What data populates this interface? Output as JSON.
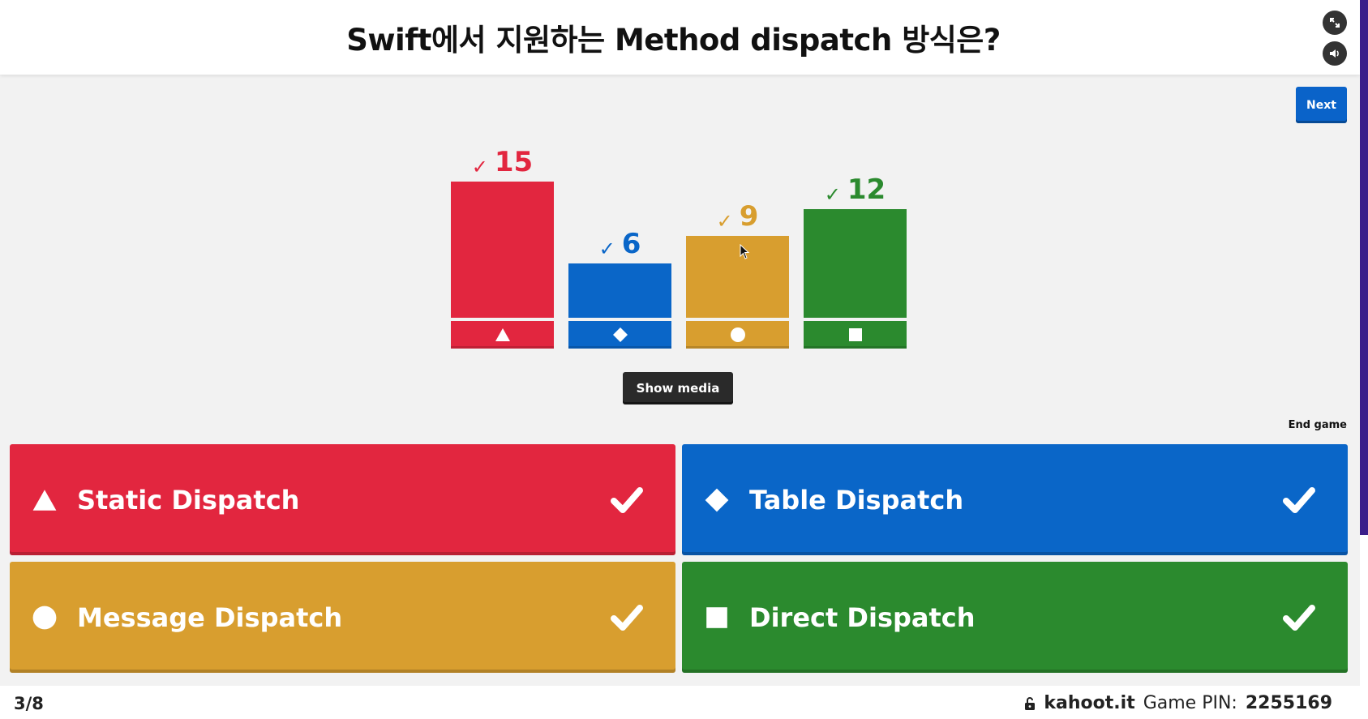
{
  "question": "Swift에서 지원하는 Method dispatch 방식은?",
  "controls": {
    "fullscreen_icon": "expand-icon",
    "sound_icon": "speaker-icon",
    "next_label": "Next",
    "show_media_label": "Show media",
    "end_game_label": "End game"
  },
  "colors": {
    "red": "#e2263f",
    "blue": "#0a66c8",
    "yellow": "#d89e2f",
    "green": "#2b8a2e"
  },
  "chart_data": {
    "type": "bar",
    "categories": [
      "triangle",
      "diamond",
      "circle",
      "square"
    ],
    "values": [
      15,
      6,
      9,
      12
    ],
    "correct": [
      true,
      true,
      true,
      true
    ],
    "colors": [
      "#e2263f",
      "#0a66c8",
      "#d89e2f",
      "#2b8a2e"
    ],
    "ylim": [
      0,
      15
    ]
  },
  "answers": [
    {
      "shape": "triangle",
      "label": "Static Dispatch",
      "color": "#e2263f",
      "correct": true
    },
    {
      "shape": "diamond",
      "label": "Table Dispatch",
      "color": "#0a66c8",
      "correct": true
    },
    {
      "shape": "circle",
      "label": "Message Dispatch",
      "color": "#d89e2f",
      "correct": true
    },
    {
      "shape": "square",
      "label": "Direct Dispatch",
      "color": "#2b8a2e",
      "correct": true
    }
  ],
  "footer": {
    "progress": "3/8",
    "brand": "kahoot.it",
    "pin_label": "Game PIN:",
    "pin": "2255169",
    "lock_icon": "lock-icon"
  }
}
